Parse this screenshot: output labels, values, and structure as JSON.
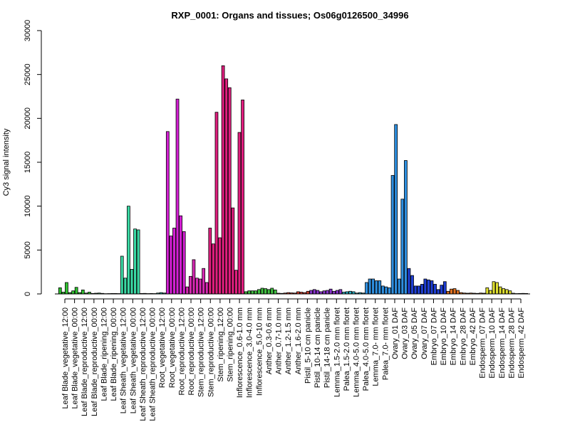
{
  "chart_data": {
    "type": "bar",
    "title": "RXP_0001: Organs and tissues; Os06g0126500_34996",
    "ylabel": "Cy3 signal intensity",
    "xlabel": "",
    "ylim": [
      0,
      30000
    ],
    "yticks": [
      0,
      5000,
      10000,
      15000,
      20000,
      25000,
      30000
    ],
    "xtick_labels": [
      "Leaf Blade_vegetative_12:00",
      "Leaf Blade_vegetative_00:00",
      "Leaf Blade_reproductive_12:00",
      "Leaf Blade_reproductive_00:00",
      "Leaf Blade_ripening_12:00",
      "Leaf Blade_ripening_00:00",
      "Leaf Sheath_vegetative_12:00",
      "Leaf Sheath_vegetative_00:00",
      "Leaf Sheath_reproductive_12:00",
      "Leaf Sheath_reproductive_00:00",
      "Root_vegetative_12:00",
      "Root_vegetative_00:00",
      "Root_reproductive_12:00",
      "Root_reproductive_00:00",
      "Stem_reproductive_12:00",
      "Stem_reproductive_00:00",
      "Stem_ripening_12:00",
      "Stem_ripening_00:00",
      "Inflorescence_0.6-1.0 mm",
      "Inflorescence_3.0-4.0 mm",
      "Inflorescence_5.0-10 mm",
      "Anther_0.3-0.6 mm",
      "Anther_0.7-1.0 mm",
      "Anther_1.2-1.5 mm",
      "Anther_1.6-2.0 mm",
      "Pistil_5-10 cm panicle",
      "Pistil_10-14 cm panicle",
      "Pistil_14-18 cm panicle",
      "Lemma_1.5-2.0 mm floret",
      "Palea_1.5-2.0 mm floret",
      "Lemma_4.0-5.0 mm floret",
      "Palea_4.0-5.0 mm floret",
      "Lemma_7.0- mm floret",
      "Palea_7.0- mm floret",
      "Ovary_01 DAF",
      "Ovary_03 DAF",
      "Ovary_05 DAF",
      "Ovary_07 DAF",
      "Embryo_07 DAF",
      "Embryo_10 DAF",
      "Embryo_14 DAF",
      "Embryo_28 DAF",
      "Embryo_42 DAF",
      "Endosperm_07 DAF",
      "Endosperm_10 DAF",
      "Endosperm_14 DAF",
      "Endosperm_28 DAF",
      "Endosperm_42 DAF"
    ],
    "groups": [
      {
        "color": "#2fc12f",
        "values": [
          700,
          200,
          1300,
          150,
          350,
          750,
          150,
          450,
          100,
          200
        ]
      },
      {
        "color": "#35c46d",
        "values": [
          50,
          80,
          100,
          60,
          30,
          40,
          50,
          50,
          40
        ]
      },
      {
        "color": "#3ad9a4",
        "values": [
          4300,
          1800,
          10000,
          2800,
          7400,
          7300
        ]
      },
      {
        "color": "#29b6a6",
        "values": [
          50,
          60,
          40,
          50,
          40,
          100,
          150,
          100
        ]
      },
      {
        "color": "#d41fd4",
        "values": [
          18500,
          6600,
          7500,
          22200,
          8900,
          7100
        ]
      },
      {
        "color": "#d628b2",
        "values": [
          800,
          2000,
          3900,
          1800,
          1700,
          2900,
          1300
        ]
      },
      {
        "color": "#e01e7e",
        "values": [
          7500,
          5700,
          20700,
          6400,
          26000,
          24500,
          23500,
          9800,
          2700,
          18400,
          22100
        ]
      },
      {
        "color": "#40c040",
        "values": [
          250,
          350,
          350,
          350,
          500,
          650,
          600,
          500,
          650,
          450
        ]
      },
      {
        "color": "#d4412f",
        "values": [
          80,
          60,
          100,
          150,
          120,
          100,
          250,
          200,
          150,
          300
        ]
      },
      {
        "color": "#8833cc",
        "values": [
          400,
          500,
          400,
          250,
          350,
          400,
          550,
          300,
          400,
          500
        ]
      },
      {
        "color": "#2ab0c4",
        "values": [
          200,
          250,
          300,
          250,
          100,
          150,
          100
        ]
      },
      {
        "color": "#2e8fe0",
        "values": [
          1300,
          1700,
          1700,
          1500,
          1500,
          900,
          800,
          700,
          13500,
          19300,
          1700,
          10800,
          15200
        ]
      },
      {
        "color": "#1f3fd4",
        "values": [
          2900,
          2100,
          900,
          900,
          1100,
          1700,
          1600,
          1500,
          1100,
          500,
          1000,
          1400
        ]
      },
      {
        "color": "#e0701e",
        "values": [
          300,
          550,
          600,
          400,
          150,
          100,
          80,
          100,
          80,
          60,
          100,
          80
        ]
      },
      {
        "color": "#e0e030",
        "values": [
          700,
          400,
          1400,
          1300,
          800,
          600,
          500,
          350,
          80,
          40,
          50,
          60,
          50
        ]
      }
    ]
  }
}
